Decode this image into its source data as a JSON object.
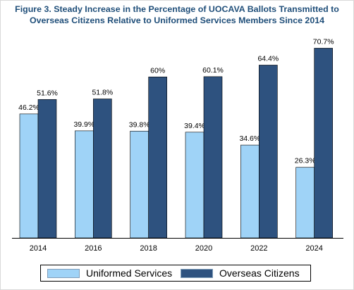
{
  "colors": {
    "uniformed": "#9fd3f7",
    "overseas": "#2e527f",
    "title": "#1f4e79"
  },
  "chart_data": {
    "type": "bar",
    "title": "Figure 3. Steady Increase in the Percentage of UOCAVA Ballots Transmitted to Overseas Citizens Relative to Uniformed Services Members Since 2014",
    "xlabel": "",
    "ylabel": "",
    "ylim": [
      0,
      80
    ],
    "grid": false,
    "legend_position": "bottom",
    "categories": [
      "2014",
      "2016",
      "2018",
      "2020",
      "2022",
      "2024"
    ],
    "series": [
      {
        "name": "Uniformed Services",
        "values": [
          46.2,
          39.9,
          39.8,
          39.4,
          34.6,
          26.3
        ],
        "labels": [
          "46.2%",
          "39.9%",
          "39.8%",
          "39.4%",
          "34.6%",
          "26.3%"
        ]
      },
      {
        "name": "Overseas Citizens",
        "values": [
          51.6,
          51.8,
          60,
          60.1,
          64.4,
          70.7
        ],
        "labels": [
          "51.6%",
          "51.8%",
          "60%",
          "60.1%",
          "64.4%",
          "70.7%"
        ]
      }
    ]
  }
}
